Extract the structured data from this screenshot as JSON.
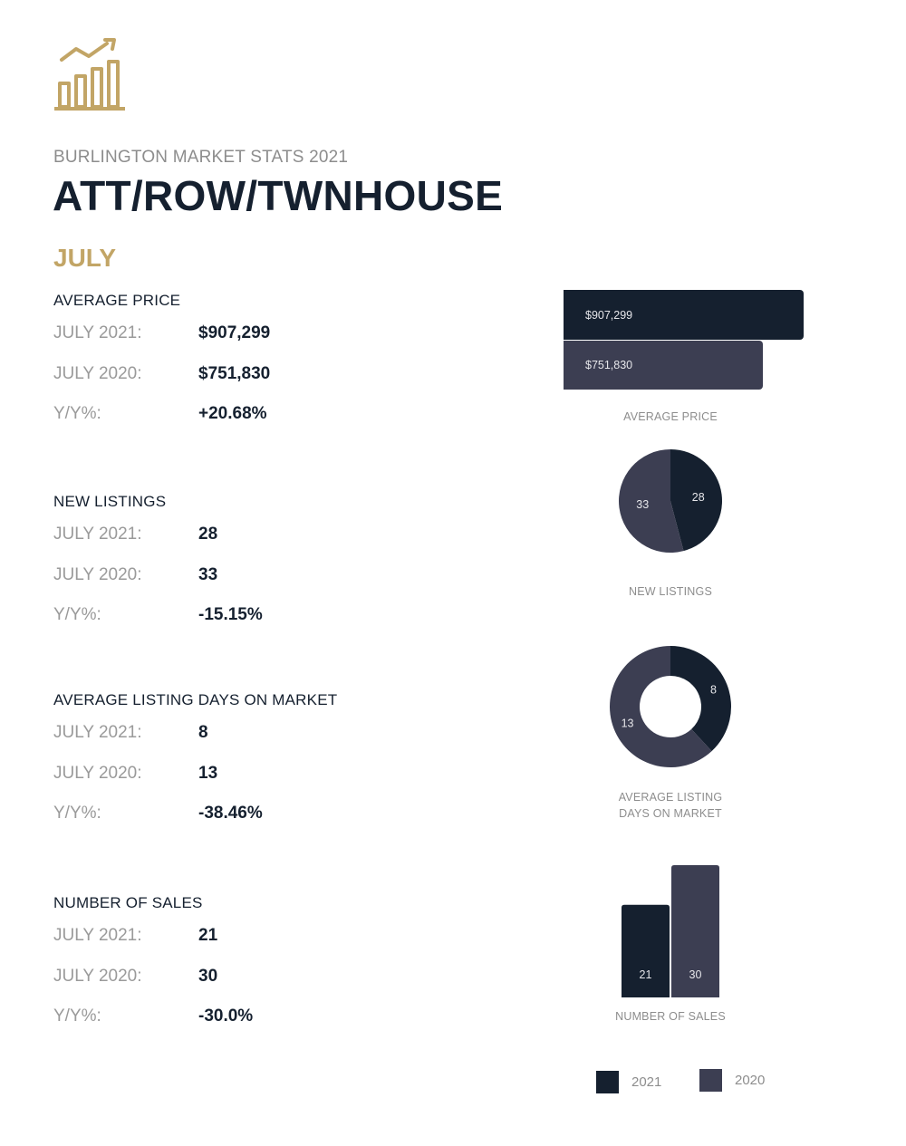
{
  "header": {
    "logo_icon": "rising-bar-chart-icon",
    "subtitle": "BURLINGTON MARKET STATS 2021",
    "title": "ATT/ROW/TWNHOUSE",
    "month": "JULY"
  },
  "colors": {
    "navy": "#15202f",
    "slate": "#3c3e52",
    "gold": "#c2a566",
    "gray_text": "#8d8d8d"
  },
  "sections": [
    {
      "title": "AVERAGE PRICE",
      "rows": [
        {
          "label": "JULY 2021:",
          "value": "$907,299"
        },
        {
          "label": "JULY 2020:",
          "value": "$751,830"
        },
        {
          "label": "Y/Y%:",
          "value": "+20.68%"
        }
      ]
    },
    {
      "title": "NEW LISTINGS",
      "rows": [
        {
          "label": "JULY 2021:",
          "value": "28"
        },
        {
          "label": "JULY 2020:",
          "value": "33"
        },
        {
          "label": "Y/Y%:",
          "value": "-15.15%"
        }
      ]
    },
    {
      "title": "AVERAGE LISTING DAYS ON MARKET",
      "rows": [
        {
          "label": "JULY 2021:",
          "value": "8"
        },
        {
          "label": "JULY 2020:",
          "value": "13"
        },
        {
          "label": "Y/Y%:",
          "value": "-38.46%"
        }
      ]
    },
    {
      "title": "NUMBER OF SALES",
      "rows": [
        {
          "label": "JULY 2021:",
          "value": "21"
        },
        {
          "label": "JULY 2020:",
          "value": "30"
        },
        {
          "label": "Y/Y%:",
          "value": "-30.0%"
        }
      ]
    }
  ],
  "chart_data": [
    {
      "type": "bar",
      "orientation": "horizontal",
      "title": "AVERAGE PRICE",
      "series": [
        {
          "name": "2021",
          "value": 907299,
          "label": "$907,299"
        },
        {
          "name": "2020",
          "value": 751830,
          "label": "$751,830"
        }
      ]
    },
    {
      "type": "pie",
      "title": "NEW LISTINGS",
      "series": [
        {
          "name": "2021",
          "value": 28,
          "label": "28"
        },
        {
          "name": "2020",
          "value": 33,
          "label": "33"
        }
      ]
    },
    {
      "type": "pie",
      "variant": "donut",
      "title": "AVERAGE LISTING DAYS ON MARKET",
      "title_lines": [
        "AVERAGE LISTING",
        "DAYS ON MARKET"
      ],
      "series": [
        {
          "name": "2021",
          "value": 8,
          "label": "8"
        },
        {
          "name": "2020",
          "value": 13,
          "label": "13"
        }
      ]
    },
    {
      "type": "bar",
      "orientation": "vertical",
      "title": "NUMBER OF SALES",
      "series": [
        {
          "name": "2021",
          "value": 21,
          "label": "21"
        },
        {
          "name": "2020",
          "value": 30,
          "label": "30"
        }
      ]
    }
  ],
  "legend": [
    {
      "name": "2021",
      "color": "#15202f"
    },
    {
      "name": "2020",
      "color": "#3c3e52"
    }
  ]
}
